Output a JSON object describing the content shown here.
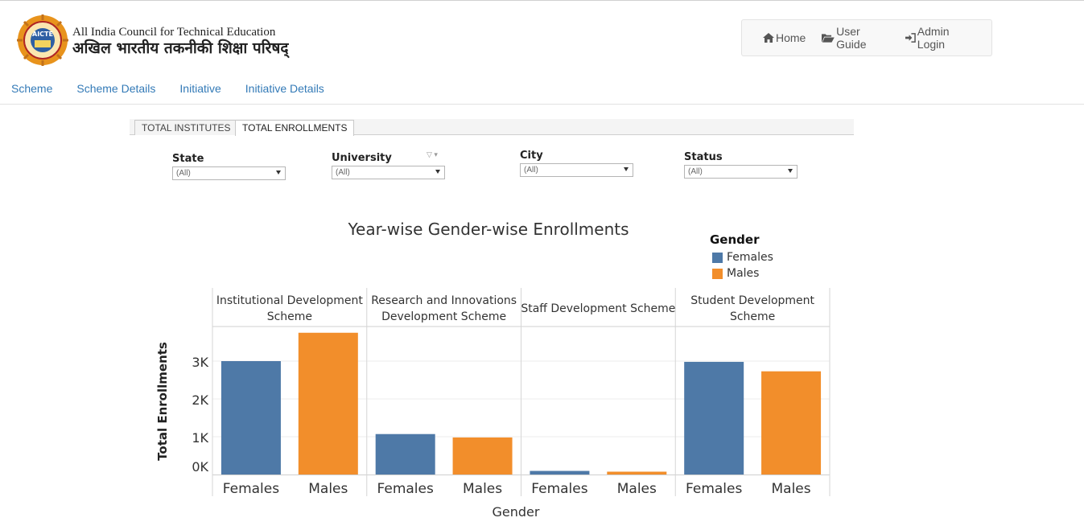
{
  "header": {
    "logo_text": "AICTE",
    "org_name_en": "All India Council for Technical Education",
    "org_name_hi": "अखिल भारतीय तकनीकी शिक्षा परिषद्"
  },
  "topnav": {
    "home": "Home",
    "user_guide": "User Guide",
    "admin_login": "Admin Login"
  },
  "subnav": [
    "Scheme",
    "Scheme Details",
    "Initiative",
    "Initiative Details"
  ],
  "tabs": [
    {
      "label": "TOTAL INSTITUTES",
      "active": false
    },
    {
      "label": "TOTAL ENROLLMENTS",
      "active": true
    }
  ],
  "filters": [
    {
      "label": "State",
      "value": "(All)"
    },
    {
      "label": "University",
      "value": "(All)"
    },
    {
      "label": "City",
      "value": "(All)"
    },
    {
      "label": "Status",
      "value": "(All)"
    }
  ],
  "colors": {
    "females": "#4e79a7",
    "males": "#f28e2b",
    "nav_link": "#337ab7"
  },
  "chart_data": {
    "type": "bar",
    "title": "Year-wise Gender-wise Enrollments",
    "xlabel": "Gender",
    "ylabel": "Total Enrollments",
    "legend_title": "Gender",
    "legend": [
      "Females",
      "Males"
    ],
    "y_ticks": [
      "0K",
      "1K",
      "2K",
      "3K"
    ],
    "ylim": [
      0,
      3800
    ],
    "grid": true,
    "panels": [
      {
        "name": "Institutional Development Scheme",
        "header": [
          "Institutional Development",
          "Scheme"
        ],
        "categories": [
          "Females",
          "Males"
        ],
        "values": [
          3000,
          3750
        ]
      },
      {
        "name": "Research and Innovations Development Scheme",
        "header": [
          "Research and Innovations",
          "Development Scheme"
        ],
        "categories": [
          "Females",
          "Males"
        ],
        "values": [
          1070,
          980
        ]
      },
      {
        "name": "Staff Development Scheme",
        "header": [
          "Staff Development Scheme"
        ],
        "categories": [
          "Females",
          "Males"
        ],
        "values": [
          95,
          75
        ]
      },
      {
        "name": "Student Development Scheme",
        "header": [
          "Student Development",
          "Scheme"
        ],
        "categories": [
          "Females",
          "Males"
        ],
        "values": [
          2980,
          2730
        ]
      }
    ]
  }
}
